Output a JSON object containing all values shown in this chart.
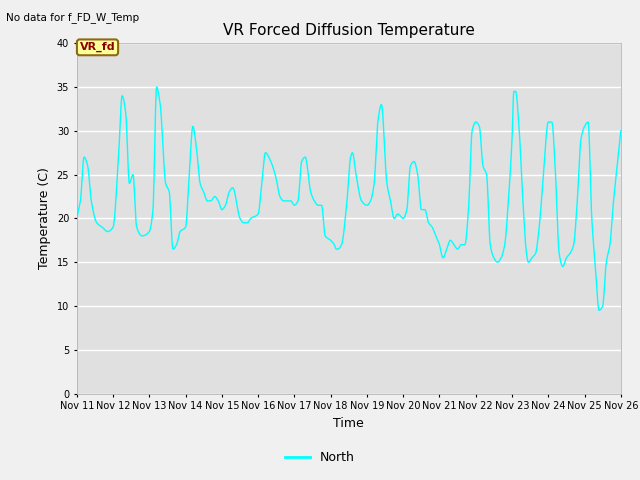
{
  "title": "VR Forced Diffusion Temperature",
  "xlabel": "Time",
  "ylabel": "Temperature (C)",
  "top_left_text": "No data for f_FD_W_Temp",
  "annotation_label": "VR_fd",
  "legend_label": "North",
  "line_color": "#00FFFF",
  "background_color": "#E0E0E0",
  "fig_facecolor": "#F0F0F0",
  "ylim": [
    0,
    40
  ],
  "yticks": [
    0,
    5,
    10,
    15,
    20,
    25,
    30,
    35,
    40
  ],
  "x_labels": [
    "Nov 11",
    "Nov 12",
    "Nov 13",
    "Nov 14",
    "Nov 15",
    "Nov 16",
    "Nov 17",
    "Nov 18",
    "Nov 19",
    "Nov 20",
    "Nov 21",
    "Nov 22",
    "Nov 23",
    "Nov 24",
    "Nov 25",
    "Nov 26"
  ],
  "annotation_box_facecolor": "#FFFF99",
  "annotation_box_edgecolor": "#8B6914",
  "annotation_text_color": "#8B0000",
  "grid_color": "#FFFFFF",
  "spine_color": "#AAAAAA"
}
